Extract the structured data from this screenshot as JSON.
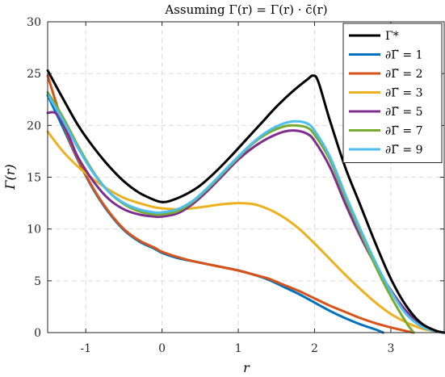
{
  "chart_data": {
    "type": "line",
    "title": "Assuming Γ(r) = Γ(r) · c̄(r)",
    "xlabel": "r",
    "ylabel": "Γ(r)",
    "xlim": [
      -1.5,
      3.7
    ],
    "ylim": [
      0,
      30
    ],
    "xticks": [
      -1,
      0,
      1,
      2,
      3
    ],
    "xtick_labels": [
      "-1",
      "0",
      "1",
      "2",
      "3"
    ],
    "yticks": [
      0,
      5,
      10,
      15,
      20,
      25,
      30
    ],
    "ytick_labels": [
      "0",
      "5",
      "10",
      "15",
      "20",
      "25",
      "30"
    ],
    "grid": true,
    "legend_position": "top-right",
    "series": [
      {
        "name": "Γ*",
        "color": "#000000",
        "x": [
          -1.5,
          -1.3,
          -1.1,
          -0.9,
          -0.7,
          -0.5,
          -0.3,
          -0.1,
          0,
          0.1,
          0.3,
          0.5,
          0.7,
          0.9,
          1.1,
          1.3,
          1.5,
          1.7,
          1.9,
          1.98,
          2.05,
          2.2,
          2.4,
          2.6,
          2.8,
          3.0,
          3.2,
          3.4,
          3.6,
          3.7
        ],
        "y": [
          25.3,
          22.6,
          20.0,
          17.9,
          16.1,
          14.6,
          13.5,
          12.8,
          12.6,
          12.7,
          13.3,
          14.2,
          15.5,
          17.0,
          18.6,
          20.2,
          21.8,
          23.2,
          24.4,
          24.8,
          24.2,
          20.5,
          16.0,
          12.3,
          8.6,
          5.2,
          2.6,
          0.9,
          0.15,
          0.0
        ]
      },
      {
        "name": "∂Γ̃ = 1",
        "color": "#0072BD",
        "x": [
          -1.5,
          -1.3,
          -1.1,
          -0.9,
          -0.7,
          -0.5,
          -0.3,
          -0.1,
          0,
          0.2,
          0.4,
          0.6,
          0.8,
          1.0,
          1.2,
          1.4,
          1.6,
          1.8,
          2.0,
          2.2,
          2.4,
          2.6,
          2.8,
          2.9
        ],
        "y": [
          22.9,
          19.8,
          16.6,
          13.8,
          11.6,
          9.9,
          8.8,
          8.1,
          7.7,
          7.2,
          6.9,
          6.6,
          6.3,
          6.0,
          5.6,
          5.1,
          4.4,
          3.7,
          2.9,
          2.1,
          1.4,
          0.8,
          0.3,
          0.0
        ]
      },
      {
        "name": "∂Γ̃ = 2",
        "color": "#D95319",
        "x": [
          -1.5,
          -1.3,
          -1.1,
          -0.9,
          -0.7,
          -0.5,
          -0.3,
          -0.1,
          0,
          0.2,
          0.4,
          0.6,
          0.8,
          1.0,
          1.2,
          1.4,
          1.6,
          1.8,
          2.0,
          2.2,
          2.4,
          2.6,
          2.8,
          3.0,
          3.2,
          3.3
        ],
        "y": [
          24.8,
          20.2,
          16.7,
          13.9,
          11.7,
          10.0,
          8.9,
          8.2,
          7.8,
          7.3,
          6.9,
          6.6,
          6.3,
          6.0,
          5.6,
          5.2,
          4.6,
          4.0,
          3.3,
          2.6,
          2.0,
          1.4,
          0.9,
          0.5,
          0.15,
          0.0
        ]
      },
      {
        "name": "∂Γ̃ = 3",
        "color": "#EDB120",
        "x": [
          -1.5,
          -1.3,
          -1.1,
          -0.9,
          -0.7,
          -0.5,
          -0.3,
          -0.1,
          0,
          0.2,
          0.4,
          0.6,
          0.8,
          1.0,
          1.2,
          1.4,
          1.6,
          1.8,
          2.0,
          2.2,
          2.4,
          2.6,
          2.8,
          3.0,
          3.2,
          3.4,
          3.6,
          3.7
        ],
        "y": [
          19.4,
          17.5,
          16.0,
          14.8,
          13.8,
          13.0,
          12.5,
          12.1,
          12.0,
          11.9,
          12.0,
          12.2,
          12.4,
          12.5,
          12.4,
          11.9,
          11.1,
          10.0,
          8.6,
          7.1,
          5.6,
          4.2,
          2.9,
          1.8,
          1.0,
          0.4,
          0.1,
          0.0
        ]
      },
      {
        "name": "∂Γ̃ = 5",
        "color": "#7E2F8E",
        "x": [
          -1.5,
          -1.4,
          -1.3,
          -1.2,
          -1.1,
          -0.9,
          -0.7,
          -0.5,
          -0.3,
          -0.1,
          0,
          0.2,
          0.4,
          0.6,
          0.8,
          1.0,
          1.2,
          1.4,
          1.6,
          1.75,
          1.9,
          2.0,
          2.2,
          2.4,
          2.6,
          2.8,
          3.0,
          3.2,
          3.4,
          3.6,
          3.7
        ],
        "y": [
          21.2,
          21.2,
          20.2,
          18.6,
          16.9,
          14.6,
          12.9,
          11.9,
          11.4,
          11.2,
          11.2,
          11.5,
          12.4,
          13.7,
          15.2,
          16.7,
          17.9,
          18.8,
          19.4,
          19.5,
          19.2,
          18.5,
          16.0,
          12.5,
          9.3,
          6.5,
          4.1,
          2.1,
          0.8,
          0.15,
          0.0
        ]
      },
      {
        "name": "∂Γ̃ = 7",
        "color": "#77AC30",
        "x": [
          -1.5,
          -1.3,
          -1.1,
          -0.9,
          -0.7,
          -0.5,
          -0.3,
          -0.1,
          0,
          0.2,
          0.4,
          0.6,
          0.8,
          1.0,
          1.2,
          1.4,
          1.6,
          1.75,
          1.9,
          2.0,
          2.2,
          2.4,
          2.6,
          2.8,
          3.0,
          3.2,
          3.3
        ],
        "y": [
          23.2,
          20.8,
          18.0,
          15.5,
          13.6,
          12.4,
          11.7,
          11.4,
          11.4,
          11.7,
          12.6,
          13.9,
          15.4,
          16.9,
          18.3,
          19.3,
          19.9,
          20.0,
          19.8,
          19.1,
          16.7,
          13.1,
          9.7,
          6.4,
          3.5,
          1.0,
          0.0
        ]
      },
      {
        "name": "∂Γ̃ = 9",
        "color": "#4DBEEE",
        "x": [
          -1.5,
          -1.3,
          -1.1,
          -0.9,
          -0.7,
          -0.5,
          -0.3,
          -0.1,
          0,
          0.2,
          0.4,
          0.6,
          0.8,
          1.0,
          1.2,
          1.4,
          1.6,
          1.75,
          1.9,
          2.0,
          2.2,
          2.4,
          2.6,
          2.8,
          3.0,
          3.2,
          3.4,
          3.6,
          3.7
        ],
        "y": [
          23.0,
          20.5,
          17.8,
          15.4,
          13.6,
          12.5,
          11.9,
          11.6,
          11.6,
          11.9,
          12.7,
          14.0,
          15.5,
          17.0,
          18.4,
          19.5,
          20.2,
          20.4,
          20.2,
          19.5,
          17.0,
          13.4,
          10.0,
          6.8,
          4.0,
          1.8,
          0.6,
          0.1,
          0.0
        ]
      }
    ]
  }
}
